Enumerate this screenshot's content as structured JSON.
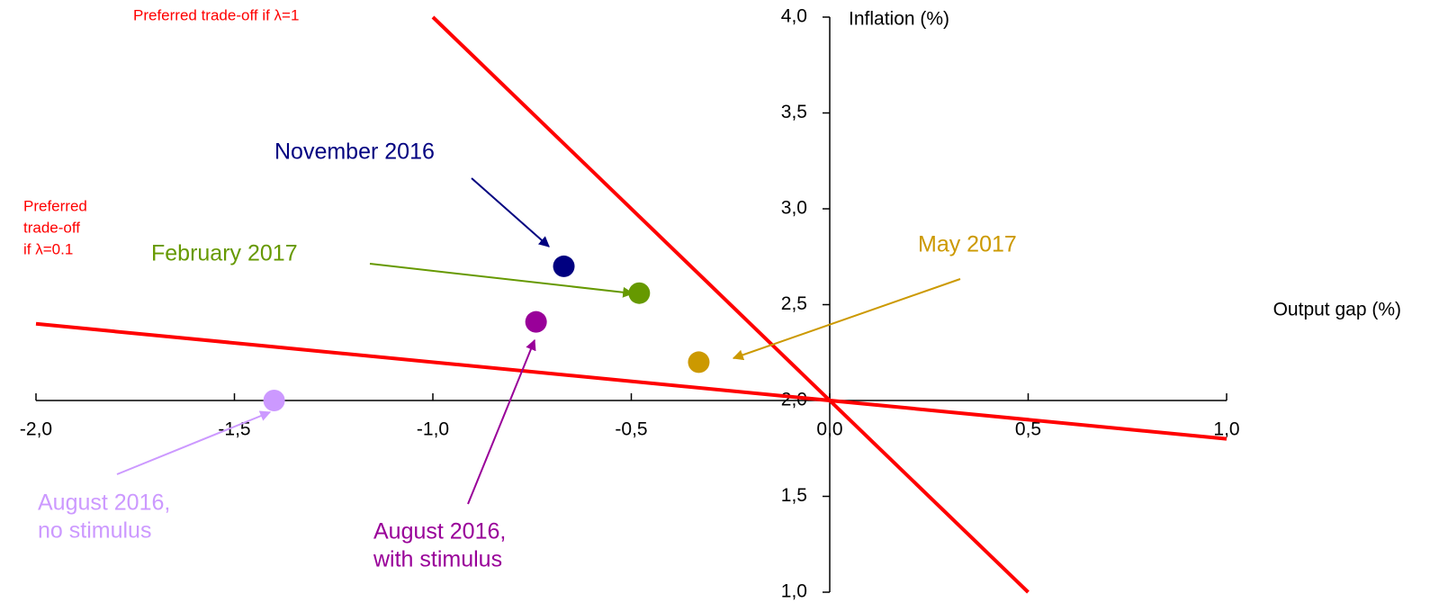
{
  "chart_data": {
    "type": "scatter",
    "xlabel": "Output gap (%)",
    "ylabel": "Inflation (%)",
    "xlim": [
      -2,
      1
    ],
    "ylim": [
      1,
      4
    ],
    "xticks": [
      {
        "value": -2,
        "label": "-2,0"
      },
      {
        "value": -1.5,
        "label": "-1,5"
      },
      {
        "value": -1,
        "label": "-1,0"
      },
      {
        "value": -0.5,
        "label": "-0,5"
      },
      {
        "value": 0,
        "label": "0,0"
      },
      {
        "value": 0.5,
        "label": "0,5"
      },
      {
        "value": 1,
        "label": "1,0"
      }
    ],
    "yticks": [
      {
        "value": 1,
        "label": "1,0"
      },
      {
        "value": 1.5,
        "label": "1,5"
      },
      {
        "value": 2,
        "label": "2,0"
      },
      {
        "value": 2.5,
        "label": "2,5"
      },
      {
        "value": 3,
        "label": "3,0"
      },
      {
        "value": 3.5,
        "label": "3,5"
      },
      {
        "value": 4,
        "label": "4,0"
      }
    ],
    "points": [
      {
        "label": [
          "November 2016"
        ],
        "color": "#000080",
        "x": -0.67,
        "y": 2.7
      },
      {
        "label": [
          "February 2017"
        ],
        "color": "#669900",
        "x": -0.48,
        "y": 2.56
      },
      {
        "label": [
          "August 2016,",
          "with stimulus"
        ],
        "color": "#990099",
        "x": -0.74,
        "y": 2.41
      },
      {
        "label": [
          "May 2017"
        ],
        "color": "#cc9900",
        "x": -0.33,
        "y": 2.2
      },
      {
        "label": [
          "August 2016,",
          "no stimulus"
        ],
        "color": "#cc99ff",
        "x": -1.4,
        "y": 2.0
      }
    ],
    "lines": [
      {
        "label": [
          "Preferred trade-off if λ=1"
        ],
        "color": "#ff0000",
        "x": [
          -1,
          0.5
        ],
        "y": [
          4,
          1
        ]
      },
      {
        "label": [
          "Preferred",
          "trade-off",
          "if λ=0.1"
        ],
        "color": "#ff0000",
        "x": [
          -2,
          1
        ],
        "y": [
          2.4,
          1.8
        ]
      }
    ]
  }
}
